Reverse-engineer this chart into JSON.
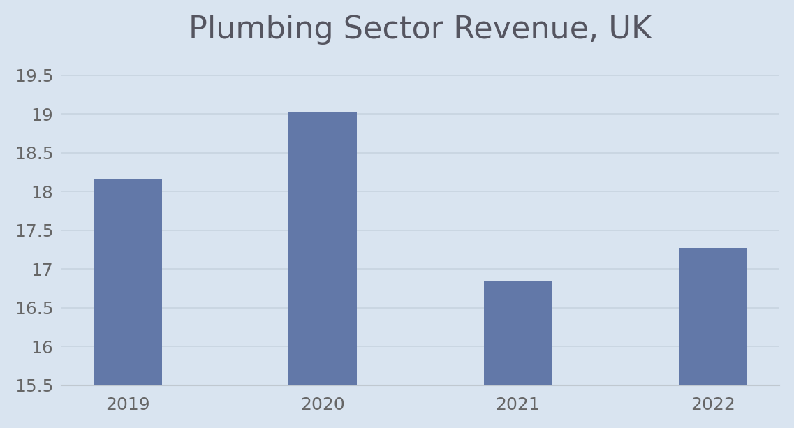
{
  "title": "Plumbing Sector Revenue, UK",
  "categories": [
    "2019",
    "2020",
    "2021",
    "2022"
  ],
  "values": [
    18.15,
    19.03,
    16.85,
    17.27
  ],
  "bar_color": "#6278a8",
  "background_color": "#d9e4f0",
  "ylim": [
    15.5,
    19.75
  ],
  "yticks": [
    15.5,
    16.0,
    16.5,
    17.0,
    17.5,
    18.0,
    18.5,
    19.0,
    19.5
  ],
  "title_fontsize": 32,
  "tick_fontsize": 18,
  "grid_color": "#c8d4e0",
  "axes_bottom_color": "#c0c8d0",
  "bar_width": 0.35,
  "title_color": "#555560",
  "tick_color": "#666666"
}
